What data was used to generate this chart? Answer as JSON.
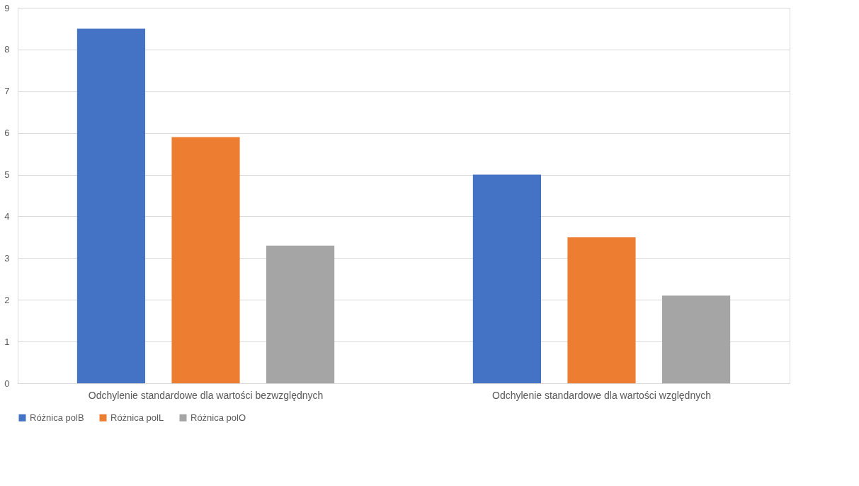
{
  "chart_data": {
    "type": "bar",
    "categories": [
      "Odchylenie standardowe dla wartości bezwzględnych",
      "Odchylenie standardowe dla wartości względnych"
    ],
    "series": [
      {
        "name": "Różnica polB",
        "color": "#4472c4",
        "values": [
          8.5,
          5.0
        ]
      },
      {
        "name": "Różnica polL",
        "color": "#ed7d31",
        "values": [
          5.9,
          3.5
        ]
      },
      {
        "name": "Różnica polO",
        "color": "#a5a5a5",
        "values": [
          3.3,
          2.1
        ]
      }
    ],
    "ylim": [
      0,
      9
    ],
    "yticks": [
      0,
      1,
      2,
      3,
      4,
      5,
      6,
      7,
      8,
      9
    ],
    "grid": "y",
    "legend": "bottom"
  }
}
